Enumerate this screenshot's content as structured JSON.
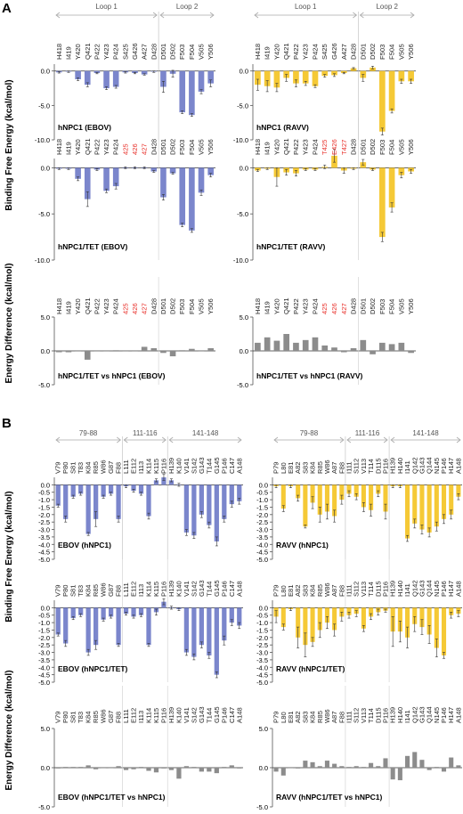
{
  "figure": {
    "panel_a_letter": "A",
    "panel_b_letter": "B",
    "ylabel_binding_a": "Binding Free Energy (kcal/mol)",
    "ylabel_diff_a": "Energy Difference (kcal/mol)",
    "ylabel_binding_b": "Binding Free Energy (kcal/mol)",
    "ylabel_diff_b": "Energy Difference (kcal/mol)"
  },
  "colors": {
    "ebov": "#7b86cc",
    "ravv": "#f5c936",
    "diff": "#8c8c8c",
    "highlight_label": "#e8302a",
    "axis": "#555555",
    "group_bracket": "#aaaaaa"
  },
  "chart_data": [
    {
      "id": "A-ebov-npc1",
      "type": "bar",
      "title": "hNPC1 (EBOV)",
      "color_key": "ebov",
      "group_labels": [
        "Loop 1",
        "Loop 2"
      ],
      "categories": [
        "H418",
        "I419",
        "Y420",
        "Q421",
        "P422",
        "Y423",
        "P424",
        "S425",
        "G426",
        "A427",
        "D428",
        "D501",
        "D502",
        "F503",
        "F504",
        "V505",
        "Y506"
      ],
      "values": [
        -0.2,
        -0.1,
        -1.2,
        -2.0,
        -0.3,
        -2.5,
        -2.3,
        -0.2,
        -0.3,
        -0.5,
        -0.1,
        -2.3,
        -0.4,
        -6.0,
        -6.4,
        -3.0,
        -1.8
      ],
      "errors": [
        0.1,
        0.1,
        0.2,
        0.3,
        0.1,
        0.2,
        0.2,
        0.1,
        0.1,
        0.1,
        0.1,
        0.8,
        0.5,
        0.2,
        0.2,
        0.3,
        0.5
      ],
      "yticks": [
        0.0,
        -5.0,
        -10.0
      ],
      "ylim": [
        -10,
        1
      ]
    },
    {
      "id": "A-ravv-npc1",
      "type": "bar",
      "title": "hNPC1 (RAVV)",
      "color_key": "ravv",
      "group_labels": [
        "Loop 1",
        "Loop 2"
      ],
      "categories": [
        "H418",
        "I419",
        "Y420",
        "Q421",
        "P422",
        "Y423",
        "P424",
        "S425",
        "G426",
        "A427",
        "D428",
        "D501",
        "D502",
        "F503",
        "F504",
        "V505",
        "Y506"
      ],
      "values": [
        -2.0,
        -2.2,
        -2.4,
        -1.0,
        -1.8,
        -1.8,
        -2.2,
        -0.7,
        -0.6,
        -0.3,
        0.4,
        -1.0,
        0.5,
        -8.8,
        -5.8,
        -1.5,
        -1.5
      ],
      "errors": [
        0.8,
        0.8,
        0.6,
        0.5,
        0.5,
        0.3,
        0.2,
        0.2,
        0.2,
        0.1,
        0.1,
        0.5,
        0.2,
        0.5,
        0.3,
        0.3,
        0.3
      ],
      "yticks": [
        0.0,
        -5.0,
        -10.0
      ],
      "ylim": [
        -10,
        1
      ]
    },
    {
      "id": "A-ebov-tet",
      "type": "bar",
      "title": "hNPC1/TET (EBOV)",
      "color_key": "ebov",
      "categories": [
        "H418",
        "I419",
        "Y420",
        "Q421",
        "P422",
        "Y423",
        "P424",
        "425",
        "426",
        "427",
        "D428",
        "D501",
        "D502",
        "F503",
        "F504",
        "V505",
        "Y506"
      ],
      "highlight": [
        7,
        8,
        9
      ],
      "values": [
        -0.1,
        -0.1,
        -1.2,
        -3.4,
        -0.2,
        -2.5,
        -2.0,
        0.0,
        0.0,
        0.0,
        -0.4,
        -3.2,
        -0.6,
        -6.2,
        -6.8,
        -2.7,
        -0.8
      ],
      "errors": [
        0.1,
        0.1,
        0.2,
        0.8,
        0.1,
        0.2,
        0.3,
        0.1,
        0.1,
        0.1,
        0.1,
        0.3,
        0.1,
        0.2,
        0.2,
        0.3,
        0.2
      ],
      "yticks": [
        0.0,
        -5.0,
        -10.0
      ],
      "ylim": [
        -10,
        1
      ]
    },
    {
      "id": "A-ravv-tet",
      "type": "bar",
      "title": "hNPC1/TET (RAVV)",
      "color_key": "ravv",
      "categories": [
        "H418",
        "I419",
        "Y420",
        "Q421",
        "P422",
        "Y423",
        "P424",
        "T425",
        "E426",
        "T427",
        "D428",
        "D501",
        "D502",
        "F503",
        "F504",
        "V505",
        "Y506"
      ],
      "highlight": [
        7,
        8,
        9
      ],
      "values": [
        -0.3,
        -0.1,
        -1.0,
        -0.5,
        -0.6,
        -0.2,
        -0.2,
        0.1,
        1.3,
        -0.3,
        -0.1,
        0.6,
        -0.2,
        -7.5,
        -4.3,
        -0.8,
        -0.4
      ],
      "errors": [
        0.1,
        0.1,
        1.0,
        0.3,
        0.3,
        0.1,
        0.1,
        0.2,
        0.7,
        0.3,
        0.1,
        0.3,
        0.1,
        0.5,
        0.5,
        0.3,
        0.2
      ],
      "yticks": [
        0.0,
        -5.0,
        -10.0
      ],
      "ylim": [
        -10,
        1
      ]
    },
    {
      "id": "A-ebov-diff",
      "type": "bar",
      "title": "hNPC1/TET vs hNPC1 (EBOV)",
      "color_key": "diff",
      "categories": [
        "H418",
        "I419",
        "Y420",
        "Q421",
        "P422",
        "Y423",
        "P424",
        "425",
        "426",
        "427",
        "D428",
        "D501",
        "D502",
        "F503",
        "F504",
        "V505",
        "Y506"
      ],
      "highlight": [
        7,
        8,
        9
      ],
      "values": [
        -0.2,
        -0.2,
        0.0,
        -1.3,
        0.0,
        0.0,
        0.1,
        0.0,
        0.0,
        0.6,
        0.4,
        -0.3,
        -0.8,
        0.1,
        0.3,
        0.0,
        0.4
      ],
      "yticks": [
        5.0,
        0.0,
        -5.0
      ],
      "ylim": [
        -5,
        5
      ]
    },
    {
      "id": "A-ravv-diff",
      "type": "bar",
      "title": "hNPC1/TET vs hNPC1 (RAVV)",
      "color_key": "diff",
      "categories": [
        "H418",
        "I419",
        "Y420",
        "Q421",
        "P422",
        "Y423",
        "P424",
        "425",
        "426",
        "427",
        "D428",
        "D501",
        "D502",
        "F503",
        "F504",
        "V505",
        "Y506"
      ],
      "highlight": [
        7,
        8,
        9
      ],
      "values": [
        1.2,
        2.0,
        1.5,
        2.5,
        1.2,
        1.6,
        2.0,
        0.8,
        0.5,
        -0.2,
        0.4,
        1.6,
        -0.5,
        1.2,
        1.0,
        1.2,
        -0.3
      ],
      "yticks": [
        5.0,
        0.0,
        -5.0
      ],
      "ylim": [
        -5,
        5
      ]
    },
    {
      "id": "B-ebov-npc1",
      "type": "bar",
      "title": "EBOV (hNPC1)",
      "color_key": "ebov",
      "group_labels": [
        "79-88",
        "111-116",
        "141-148"
      ],
      "categories": [
        "V79",
        "P80",
        "S81",
        "T83",
        "K84",
        "R85",
        "W86",
        "G87",
        "F88",
        "L111",
        "E112",
        "I113",
        "K114",
        "K115",
        "P116",
        "H139",
        "K140",
        "V141",
        "S142",
        "G143",
        "T144",
        "G145",
        "P146",
        "C147",
        "A148"
      ],
      "values": [
        -1.4,
        -2.3,
        -0.8,
        -0.6,
        -3.3,
        -2.3,
        -0.8,
        -0.6,
        -2.3,
        -0.1,
        -0.4,
        -0.6,
        -2.1,
        0.3,
        0.5,
        0.3,
        0.0,
        -3.2,
        -3.4,
        -2.0,
        -2.7,
        -3.8,
        -2.3,
        -1.3,
        -1.1
      ],
      "errors": [
        0.1,
        0.2,
        0.1,
        0.1,
        0.1,
        0.5,
        0.1,
        0.1,
        0.2,
        0.1,
        0.1,
        0.1,
        0.2,
        0.1,
        0.2,
        0.1,
        0.1,
        0.2,
        0.2,
        0.2,
        0.2,
        0.3,
        0.2,
        0.2,
        0.2
      ],
      "yticks": [
        0.0,
        -0.5,
        -1.0,
        -1.5,
        -2.0,
        -2.5,
        -3.0,
        -3.5,
        -4.0,
        -4.5,
        -5.0
      ],
      "ylim": [
        -5,
        0.5
      ]
    },
    {
      "id": "B-ravv-npc1",
      "type": "bar",
      "title": "RAVV (hNPC1)",
      "color_key": "ravv",
      "group_labels": [
        "79-88",
        "111-116",
        "141-148"
      ],
      "categories": [
        "P79",
        "L80",
        "E81",
        "A82",
        "S83",
        "K84",
        "R85",
        "W86",
        "A87",
        "F88",
        "I111",
        "S112",
        "V113",
        "T114",
        "D115",
        "P116",
        "H139",
        "H140",
        "I141",
        "Q142",
        "G143",
        "Q144",
        "N145",
        "P146",
        "H147",
        "A148"
      ],
      "values": [
        -0.1,
        -1.6,
        -0.1,
        -0.9,
        -2.8,
        -1.2,
        -2.0,
        -1.8,
        -2.1,
        -1.0,
        -0.6,
        -0.8,
        -1.5,
        -1.7,
        -0.6,
        -1.8,
        -0.1,
        -0.1,
        -3.6,
        -2.6,
        -3.0,
        -3.2,
        -2.8,
        -2.3,
        -2.0,
        -0.8
      ],
      "errors": [
        0.1,
        0.2,
        0.1,
        0.2,
        0.1,
        0.4,
        0.5,
        0.5,
        0.4,
        0.3,
        0.2,
        0.2,
        0.3,
        0.4,
        0.2,
        0.5,
        0.1,
        0.1,
        0.2,
        0.3,
        0.3,
        0.3,
        0.3,
        0.3,
        0.3,
        0.2
      ],
      "yticks": [
        0.0,
        -0.5,
        -1.0,
        -1.5,
        -2.0,
        -2.5,
        -3.0,
        -3.5,
        -4.0,
        -4.5,
        -5.0
      ],
      "ylim": [
        -5,
        0.5
      ]
    },
    {
      "id": "B-ebov-tet",
      "type": "bar",
      "title": "EBOV (hNPC1/TET)",
      "color_key": "ebov",
      "categories": [
        "V79",
        "P80",
        "S81",
        "T83",
        "K84",
        "R85",
        "W86",
        "G87",
        "F88",
        "L111",
        "E112",
        "I113",
        "K114",
        "K115",
        "P116",
        "H139",
        "K140",
        "V141",
        "S142",
        "G143",
        "T144",
        "G145",
        "P146",
        "C147",
        "A148"
      ],
      "values": [
        -1.8,
        -2.4,
        -0.7,
        -0.5,
        -3.0,
        -2.5,
        -0.8,
        -0.6,
        -2.5,
        -0.4,
        -0.6,
        -0.5,
        -2.5,
        -0.3,
        0.4,
        0.0,
        -0.1,
        -3.0,
        -3.3,
        -2.5,
        -3.2,
        -4.5,
        -2.2,
        -1.0,
        -1.2
      ],
      "errors": [
        0.1,
        0.2,
        0.1,
        0.1,
        0.2,
        0.3,
        0.1,
        0.1,
        0.1,
        0.1,
        0.1,
        0.1,
        0.1,
        0.2,
        0.2,
        0.1,
        0.1,
        0.2,
        0.2,
        0.2,
        0.2,
        0.2,
        0.3,
        0.2,
        0.2
      ],
      "yticks": [
        0.0,
        -0.5,
        -1.0,
        -1.5,
        -2.0,
        -2.5,
        -3.0,
        -3.5,
        -4.0,
        -4.5,
        -5.0
      ],
      "ylim": [
        -5,
        0.5
      ]
    },
    {
      "id": "B-ravv-tet",
      "type": "bar",
      "title": "RAVV (hNPC1/TET)",
      "color_key": "ravv",
      "categories": [
        "P79",
        "L80",
        "E81",
        "A82",
        "S83",
        "K84",
        "R85",
        "W86",
        "A87",
        "F88",
        "I111",
        "S112",
        "V113",
        "T114",
        "D115",
        "P116",
        "H139",
        "H140",
        "I141",
        "Q142",
        "G143",
        "Q144",
        "N145",
        "P146",
        "H147",
        "A148"
      ],
      "values": [
        -0.6,
        -1.3,
        -0.1,
        -2.0,
        -2.5,
        -2.3,
        -1.5,
        -1.0,
        -1.5,
        -0.6,
        -0.5,
        -0.4,
        -1.4,
        -0.6,
        -0.3,
        -0.2,
        -1.6,
        -1.6,
        -2.0,
        -1.1,
        -1.3,
        -1.8,
        -2.7,
        -3.2,
        -0.5,
        -0.4
      ],
      "errors": [
        0.4,
        0.2,
        0.1,
        0.7,
        0.8,
        0.3,
        0.5,
        0.4,
        0.4,
        0.3,
        0.2,
        0.2,
        0.2,
        0.2,
        0.2,
        0.1,
        1.0,
        0.7,
        0.7,
        0.5,
        0.5,
        0.6,
        0.6,
        0.2,
        0.2,
        0.2
      ],
      "yticks": [
        0.0,
        -0.5,
        -1.0,
        -1.5,
        -2.0,
        -2.5,
        -3.0,
        -3.5,
        -4.0,
        -4.5,
        -5.0
      ],
      "ylim": [
        -5,
        0.5
      ]
    },
    {
      "id": "B-ebov-diff",
      "type": "bar",
      "title": "EBOV (hNPC1/TET vs hNPC1)",
      "color_key": "diff",
      "categories": [
        "V79",
        "P80",
        "S81",
        "T83",
        "K84",
        "R85",
        "W86",
        "G87",
        "F88",
        "L111",
        "E112",
        "I113",
        "K114",
        "K115",
        "P116",
        "H139",
        "K140",
        "V141",
        "S142",
        "G143",
        "T144",
        "G145",
        "P146",
        "C147",
        "A148"
      ],
      "values": [
        -0.1,
        0.1,
        0.1,
        0.1,
        0.3,
        -0.2,
        0.0,
        0.0,
        0.2,
        -0.3,
        -0.2,
        0.1,
        -0.4,
        -0.6,
        -0.1,
        -0.3,
        -1.4,
        0.2,
        0.1,
        -0.5,
        -0.5,
        -0.7,
        0.1,
        0.3,
        -0.1
      ],
      "yticks": [
        5.0,
        0.0,
        -5.0
      ],
      "ylim": [
        -5,
        5
      ]
    },
    {
      "id": "B-ravv-diff",
      "type": "bar",
      "title": "RAVV (hNPC1/TET vs hNPC1)",
      "color_key": "diff",
      "categories": [
        "P79",
        "L80",
        "E81",
        "A82",
        "S83",
        "K84",
        "R85",
        "W86",
        "A87",
        "F88",
        "I111",
        "S112",
        "V113",
        "T114",
        "D115",
        "P116",
        "H139",
        "H140",
        "I141",
        "Q142",
        "G143",
        "Q144",
        "N145",
        "P146",
        "H147",
        "A148"
      ],
      "values": [
        -0.5,
        -1.0,
        0.0,
        -0.1,
        0.9,
        0.7,
        0.2,
        0.9,
        0.5,
        0.2,
        0.1,
        0.2,
        0.1,
        0.6,
        0.2,
        1.2,
        -1.5,
        -1.6,
        1.5,
        2.0,
        1.0,
        -0.3,
        0.1,
        -0.5,
        1.3,
        0.3
      ],
      "yticks": [
        5.0,
        0.0,
        -5.0
      ],
      "ylim": [
        -5,
        5
      ]
    }
  ]
}
